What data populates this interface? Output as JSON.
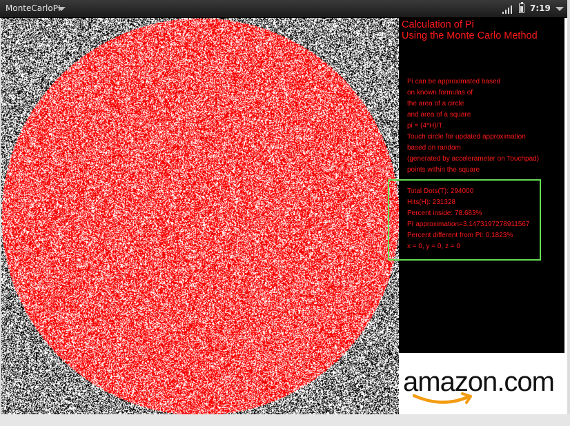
{
  "status_bar": {
    "app_title": "MonteCarloPI",
    "time": "7:19",
    "icons": [
      "menu-arrow-icon",
      "signal-icon",
      "battery-icon",
      "system-menu-arrow-icon"
    ]
  },
  "colors": {
    "inside_dot": "#ff0000",
    "outside_dot": "#ffffff",
    "background": "#000000",
    "text": "#ff1a1a",
    "stats_border": "#66dd55"
  },
  "panel": {
    "title_line1": "Calculation of Pi",
    "title_line2": "Using the Monte Carlo Method",
    "description": [
      "Pi can be approximated based",
      "on known formulas of",
      "the area of a circle",
      "and area of a square",
      "pi = (4*H)/T",
      "Touch circle for updated approximation",
      "based on random",
      "(generated by accelerameter on Touchpad)",
      "points within the square"
    ],
    "stats": {
      "total_dots": "Total Dots(T): 294000",
      "hits": "Hits(H): 231328",
      "percent_inside": "Percent inside: 78.683%",
      "pi_approx": "PI approximation=3.1473197278911567",
      "percent_diff": "Percent different from PI: 0.1823%",
      "xyz": "x = 0, y = 0, z = 0"
    }
  },
  "ad": {
    "brand": "amazon",
    "brand_suffix": ".com"
  }
}
